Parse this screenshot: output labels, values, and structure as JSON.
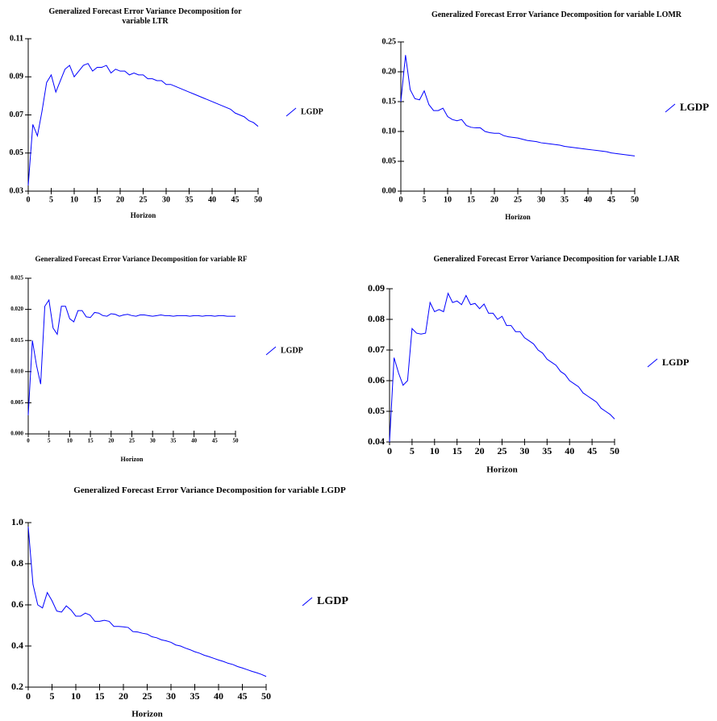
{
  "chart_data": [
    {
      "type": "line",
      "title": "Generalized Forecast Error Variance Decomposition for variable LTR",
      "xlabel": "Horizon",
      "x": [
        0,
        1,
        2,
        3,
        4,
        5,
        6,
        7,
        8,
        9,
        10,
        11,
        12,
        13,
        14,
        15,
        16,
        17,
        18,
        19,
        20,
        21,
        22,
        23,
        24,
        25,
        26,
        27,
        28,
        29,
        30,
        31,
        32,
        33,
        34,
        35,
        36,
        37,
        38,
        39,
        40,
        41,
        42,
        43,
        44,
        45,
        46,
        47,
        48,
        49,
        50
      ],
      "xlim": [
        0,
        50
      ],
      "xticks": [
        0,
        5,
        10,
        15,
        20,
        25,
        30,
        35,
        40,
        45,
        50
      ],
      "ylim": [
        0.03,
        0.11
      ],
      "yticks": [
        0.03,
        0.05,
        0.07,
        0.09,
        0.11
      ],
      "series": [
        {
          "name": "LGDP",
          "color": "#0000ff",
          "values": [
            0.033,
            0.065,
            0.059,
            0.072,
            0.087,
            0.091,
            0.082,
            0.088,
            0.094,
            0.096,
            0.09,
            0.093,
            0.096,
            0.097,
            0.093,
            0.095,
            0.095,
            0.096,
            0.092,
            0.094,
            0.093,
            0.093,
            0.091,
            0.092,
            0.091,
            0.091,
            0.089,
            0.089,
            0.088,
            0.088,
            0.086,
            0.086,
            0.085,
            0.084,
            0.083,
            0.082,
            0.081,
            0.08,
            0.079,
            0.078,
            0.077,
            0.076,
            0.075,
            0.074,
            0.073,
            0.071,
            0.07,
            0.069,
            0.067,
            0.066,
            0.064
          ]
        }
      ]
    },
    {
      "type": "line",
      "title": "Generalized Forecast Error Variance Decomposition for variable LOMR",
      "xlabel": "Horizon",
      "x": [
        0,
        1,
        2,
        3,
        4,
        5,
        6,
        7,
        8,
        9,
        10,
        11,
        12,
        13,
        14,
        15,
        16,
        17,
        18,
        19,
        20,
        21,
        22,
        23,
        24,
        25,
        26,
        27,
        28,
        29,
        30,
        31,
        32,
        33,
        34,
        35,
        36,
        37,
        38,
        39,
        40,
        41,
        42,
        43,
        44,
        45,
        46,
        47,
        48,
        49,
        50
      ],
      "xlim": [
        0,
        50
      ],
      "xticks": [
        0,
        5,
        10,
        15,
        20,
        25,
        30,
        35,
        40,
        45,
        50
      ],
      "ylim": [
        0,
        0.25
      ],
      "yticks": [
        {
          "value": 0,
          "label": "0.00"
        },
        0.05,
        {
          "value": 0.1,
          "label": "0.10"
        },
        0.15,
        {
          "value": 0.2,
          "label": "0.20"
        },
        0.25
      ],
      "series": [
        {
          "name": "LGDP",
          "color": "#0000ff",
          "values": [
            0.15,
            0.228,
            0.17,
            0.155,
            0.153,
            0.168,
            0.145,
            0.135,
            0.135,
            0.139,
            0.125,
            0.12,
            0.118,
            0.12,
            0.11,
            0.107,
            0.106,
            0.106,
            0.1,
            0.098,
            0.097,
            0.097,
            0.093,
            0.091,
            0.09,
            0.089,
            0.087,
            0.085,
            0.084,
            0.083,
            0.081,
            0.08,
            0.079,
            0.078,
            0.077,
            0.075,
            0.074,
            0.073,
            0.072,
            0.071,
            0.07,
            0.069,
            0.068,
            0.067,
            0.066,
            0.064,
            0.063,
            0.062,
            0.061,
            0.06,
            0.059
          ]
        }
      ]
    },
    {
      "type": "line",
      "title": "Generalized Forecast Error Variance Decomposition for variable RF",
      "xlabel": "Horizon",
      "x": [
        0,
        1,
        2,
        3,
        4,
        5,
        6,
        7,
        8,
        9,
        10,
        11,
        12,
        13,
        14,
        15,
        16,
        17,
        18,
        19,
        20,
        21,
        22,
        23,
        24,
        25,
        26,
        27,
        28,
        29,
        30,
        31,
        32,
        33,
        34,
        35,
        36,
        37,
        38,
        39,
        40,
        41,
        42,
        43,
        44,
        45,
        46,
        47,
        48,
        49,
        50
      ],
      "xlim": [
        0,
        50
      ],
      "xticks": [
        0,
        5,
        10,
        15,
        20,
        25,
        30,
        35,
        40,
        45,
        50
      ],
      "ylim": [
        0,
        0.025
      ],
      "yticks": [
        {
          "value": 0,
          "label": "0.000"
        },
        0.005,
        {
          "value": 0.01,
          "label": "0.010"
        },
        0.015,
        {
          "value": 0.02,
          "label": "0.020"
        },
        0.025
      ],
      "series": [
        {
          "name": "LGDP",
          "color": "#0000ff",
          "values": [
            0.003,
            0.015,
            0.011,
            0.008,
            0.0205,
            0.0215,
            0.017,
            0.016,
            0.0205,
            0.0205,
            0.0185,
            0.018,
            0.0198,
            0.0198,
            0.0188,
            0.0187,
            0.0195,
            0.0194,
            0.019,
            0.0189,
            0.0193,
            0.0192,
            0.0189,
            0.0191,
            0.0192,
            0.019,
            0.0189,
            0.0191,
            0.0191,
            0.019,
            0.0189,
            0.019,
            0.0191,
            0.019,
            0.019,
            0.0189,
            0.019,
            0.019,
            0.019,
            0.0189,
            0.019,
            0.019,
            0.0189,
            0.019,
            0.019,
            0.0189,
            0.019,
            0.019,
            0.0189,
            0.0189,
            0.0189
          ]
        }
      ]
    },
    {
      "type": "line",
      "title": "Generalized Forecast Error Variance Decomposition for variable LJAR",
      "xlabel": "Horizon",
      "x": [
        0,
        1,
        2,
        3,
        4,
        5,
        6,
        7,
        8,
        9,
        10,
        11,
        12,
        13,
        14,
        15,
        16,
        17,
        18,
        19,
        20,
        21,
        22,
        23,
        24,
        25,
        26,
        27,
        28,
        29,
        30,
        31,
        32,
        33,
        34,
        35,
        36,
        37,
        38,
        39,
        40,
        41,
        42,
        43,
        44,
        45,
        46,
        47,
        48,
        49,
        50
      ],
      "xlim": [
        0,
        50
      ],
      "xticks": [
        0,
        5,
        10,
        15,
        20,
        25,
        30,
        35,
        40,
        45,
        50
      ],
      "ylim": [
        0.04,
        0.09
      ],
      "yticks": [
        0.04,
        0.05,
        0.06,
        0.07,
        0.08,
        0.09
      ],
      "series": [
        {
          "name": "LGDP",
          "color": "#0000ff",
          "values": [
            0.04,
            0.0675,
            0.0625,
            0.0585,
            0.06,
            0.077,
            0.0755,
            0.0752,
            0.0755,
            0.0855,
            0.0825,
            0.0832,
            0.0825,
            0.0885,
            0.0855,
            0.086,
            0.0848,
            0.0878,
            0.0848,
            0.0852,
            0.0835,
            0.085,
            0.082,
            0.082,
            0.08,
            0.081,
            0.078,
            0.078,
            0.076,
            0.076,
            0.074,
            0.073,
            0.072,
            0.07,
            0.069,
            0.067,
            0.066,
            0.065,
            0.063,
            0.062,
            0.06,
            0.059,
            0.058,
            0.056,
            0.055,
            0.054,
            0.053,
            0.051,
            0.05,
            0.049,
            0.0475
          ]
        }
      ]
    },
    {
      "type": "line",
      "title": "Generalized Forecast Error Variance Decomposition for variable LGDP",
      "xlabel": "Horizon",
      "x": [
        0,
        1,
        2,
        3,
        4,
        5,
        6,
        7,
        8,
        9,
        10,
        11,
        12,
        13,
        14,
        15,
        16,
        17,
        18,
        19,
        20,
        21,
        22,
        23,
        24,
        25,
        26,
        27,
        28,
        29,
        30,
        31,
        32,
        33,
        34,
        35,
        36,
        37,
        38,
        39,
        40,
        41,
        42,
        43,
        44,
        45,
        46,
        47,
        48,
        49,
        50
      ],
      "xlim": [
        0,
        50
      ],
      "xticks": [
        0,
        5,
        10,
        15,
        20,
        25,
        30,
        35,
        40,
        45,
        50
      ],
      "ylim": [
        0.2,
        1.0
      ],
      "yticks": [
        0.2,
        0.4,
        0.6,
        0.8,
        {
          "value": 1.0,
          "label": "1.0"
        }
      ],
      "series": [
        {
          "name": "LGDP",
          "color": "#0000ff",
          "values": [
            0.98,
            0.7,
            0.6,
            0.585,
            0.66,
            0.62,
            0.57,
            0.565,
            0.595,
            0.575,
            0.545,
            0.545,
            0.56,
            0.55,
            0.52,
            0.52,
            0.525,
            0.52,
            0.495,
            0.495,
            0.493,
            0.49,
            0.47,
            0.468,
            0.462,
            0.458,
            0.445,
            0.44,
            0.43,
            0.425,
            0.418,
            0.405,
            0.4,
            0.39,
            0.382,
            0.372,
            0.365,
            0.355,
            0.348,
            0.34,
            0.332,
            0.325,
            0.316,
            0.31,
            0.3,
            0.293,
            0.285,
            0.277,
            0.27,
            0.262,
            0.252
          ]
        }
      ]
    }
  ]
}
